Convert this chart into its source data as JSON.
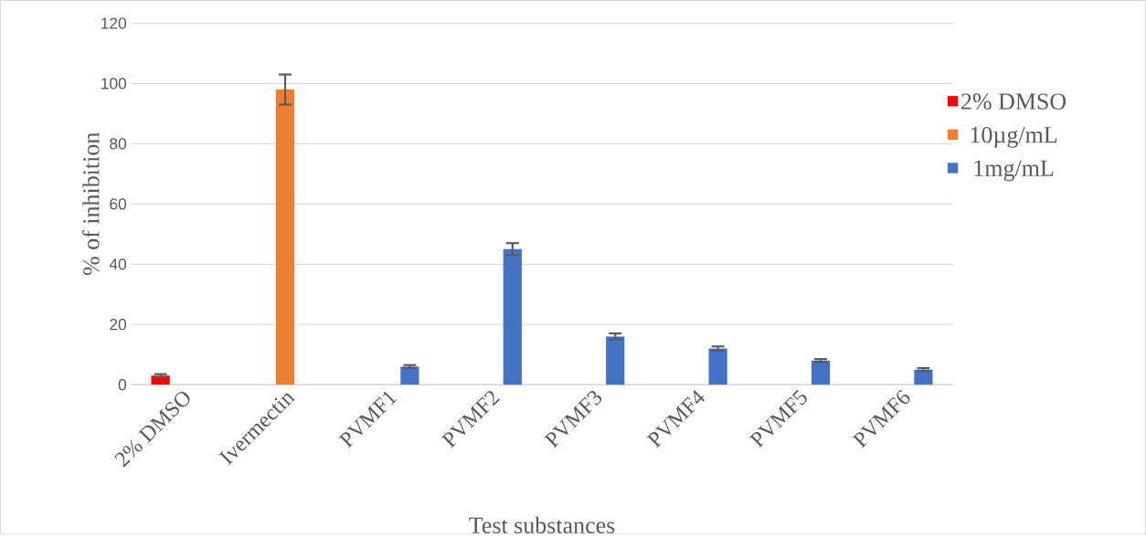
{
  "chart_data": {
    "type": "bar",
    "xlabel": "Test substances",
    "ylabel": "% of inhibition",
    "categories": [
      "2% DMSO",
      "Ivermectin",
      "PVMF1",
      "PVMF2",
      "PVMF3",
      "PVMF4",
      "PVMF5",
      "PVMF6"
    ],
    "series": [
      {
        "name": "2% DMSO",
        "color": "#ff0000",
        "values": [
          3,
          null,
          null,
          null,
          null,
          null,
          null,
          null
        ],
        "errors": [
          0.5,
          null,
          null,
          null,
          null,
          null,
          null,
          null
        ]
      },
      {
        "name": "10µg/mL",
        "color": "#ed7d31",
        "values": [
          null,
          98,
          null,
          null,
          null,
          null,
          null,
          null
        ],
        "errors": [
          null,
          5,
          null,
          null,
          null,
          null,
          null,
          null
        ]
      },
      {
        "name": "1mg/mL",
        "color": "#4472c4",
        "values": [
          null,
          null,
          6,
          45,
          16,
          12,
          8,
          5
        ],
        "errors": [
          null,
          null,
          0.5,
          2,
          1,
          0.7,
          0.5,
          0.5
        ]
      }
    ],
    "ylim": [
      0,
      120
    ],
    "yticks": [
      0,
      20,
      40,
      60,
      80,
      100,
      120
    ],
    "grid": "y",
    "legend": "right"
  }
}
